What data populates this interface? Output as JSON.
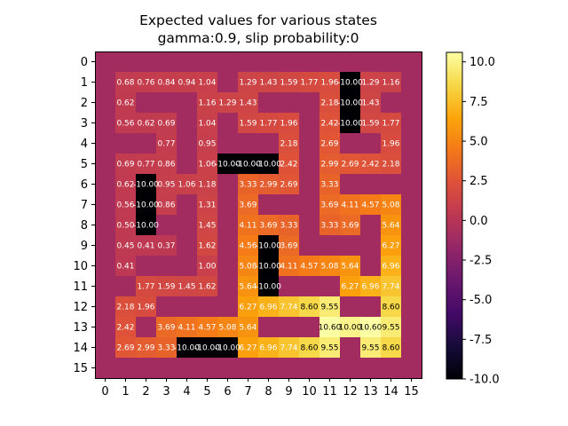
{
  "chart_data": {
    "type": "heatmap",
    "title": [
      "Expected values for various states",
      "gamma:0.9, slip probability:0"
    ],
    "xlabel": "",
    "ylabel": "",
    "x_ticks": [
      "0",
      "1",
      "2",
      "3",
      "4",
      "5",
      "6",
      "7",
      "8",
      "9",
      "10",
      "11",
      "12",
      "13",
      "14",
      "15"
    ],
    "y_ticks": [
      "0",
      "1",
      "2",
      "3",
      "4",
      "5",
      "6",
      "7",
      "8",
      "9",
      "10",
      "11",
      "12",
      "13",
      "14",
      "15"
    ],
    "colormap": "inferno",
    "vmin": -10.0,
    "vmax": 10.6,
    "colorbar_ticks": [
      "-10.0",
      "-7.5",
      "-5.0",
      "-2.5",
      "0.0",
      "2.5",
      "5.0",
      "7.5",
      "10.0"
    ],
    "colorbar_tick_values": [
      -10,
      -7.5,
      -5,
      -2.5,
      0,
      2.5,
      5,
      7.5,
      10
    ],
    "wall_value": -1,
    "grid": [
      [
        null,
        null,
        null,
        null,
        null,
        null,
        null,
        null,
        null,
        null,
        null,
        null,
        null,
        null,
        null,
        null
      ],
      [
        null,
        0.68,
        0.76,
        0.84,
        0.94,
        1.04,
        null,
        1.29,
        1.43,
        1.59,
        1.77,
        1.96,
        -10.0,
        1.29,
        1.16,
        null
      ],
      [
        null,
        0.62,
        null,
        null,
        null,
        1.16,
        1.29,
        1.43,
        null,
        null,
        null,
        2.18,
        -10.0,
        1.43,
        null,
        null
      ],
      [
        null,
        0.56,
        0.62,
        0.69,
        null,
        1.04,
        null,
        1.59,
        1.77,
        1.96,
        null,
        2.42,
        -10.0,
        1.59,
        1.77,
        null
      ],
      [
        null,
        null,
        null,
        0.77,
        null,
        0.95,
        null,
        null,
        null,
        2.18,
        null,
        2.69,
        null,
        null,
        1.96,
        null
      ],
      [
        null,
        0.69,
        0.77,
        0.86,
        null,
        1.06,
        -10.0,
        -10.0,
        -10.0,
        2.42,
        null,
        2.99,
        2.69,
        2.42,
        2.18,
        null
      ],
      [
        null,
        0.62,
        -10.0,
        0.95,
        1.06,
        1.18,
        null,
        3.33,
        2.99,
        2.69,
        null,
        3.33,
        null,
        null,
        null,
        null
      ],
      [
        null,
        0.56,
        -10.0,
        0.86,
        null,
        1.31,
        null,
        3.69,
        null,
        null,
        null,
        3.69,
        4.11,
        4.57,
        5.08,
        null
      ],
      [
        null,
        0.5,
        -10.0,
        null,
        null,
        1.45,
        null,
        4.11,
        3.69,
        3.33,
        null,
        3.33,
        3.69,
        null,
        5.64,
        null
      ],
      [
        null,
        0.45,
        0.41,
        0.37,
        null,
        1.62,
        null,
        4.56,
        -10.0,
        3.69,
        null,
        null,
        null,
        null,
        6.27,
        null
      ],
      [
        null,
        0.41,
        null,
        null,
        null,
        1.0,
        null,
        5.08,
        -10.0,
        4.11,
        4.57,
        5.08,
        5.64,
        null,
        6.96,
        null
      ],
      [
        null,
        null,
        1.77,
        1.59,
        1.45,
        1.62,
        null,
        5.64,
        -10.0,
        null,
        null,
        null,
        6.27,
        6.96,
        7.74,
        null
      ],
      [
        null,
        2.18,
        1.96,
        null,
        null,
        null,
        null,
        6.27,
        6.96,
        7.74,
        8.6,
        9.55,
        null,
        null,
        8.6,
        null
      ],
      [
        null,
        2.42,
        null,
        3.69,
        4.11,
        4.57,
        5.08,
        5.64,
        null,
        null,
        null,
        10.6,
        10.0,
        10.6,
        9.55,
        null
      ],
      [
        null,
        2.69,
        2.99,
        3.33,
        -10.0,
        -10.0,
        -10.0,
        6.27,
        6.96,
        7.74,
        8.6,
        9.55,
        null,
        9.55,
        8.6,
        null
      ],
      [
        null,
        null,
        null,
        null,
        null,
        null,
        null,
        null,
        null,
        null,
        null,
        null,
        null,
        null,
        null,
        null
      ]
    ],
    "cell_labels": [
      [
        null,
        null,
        null,
        null,
        null,
        null,
        null,
        null,
        null,
        null,
        null,
        null,
        null,
        null,
        null,
        null
      ],
      [
        null,
        "0.68",
        "0.76",
        "0.84",
        "0.94",
        "1.04",
        null,
        "1.29",
        "1.43",
        "1.59",
        "1.77",
        "1.96",
        "-10.00",
        "1.29",
        "1.16",
        null
      ],
      [
        null,
        "0.62",
        null,
        null,
        null,
        "1.16",
        "1.29",
        "1.43",
        null,
        null,
        null,
        "2.18",
        "-10.00",
        "1.43",
        null,
        null
      ],
      [
        null,
        "0.56",
        "0.62",
        "0.69",
        null,
        "1.04",
        null,
        "1.59",
        "1.77",
        "1.96",
        null,
        "2.42",
        "-10.00",
        "1.59",
        "1.77",
        null
      ],
      [
        null,
        null,
        null,
        "0.77",
        null,
        "0.95",
        null,
        null,
        null,
        "2.18",
        null,
        "2.69",
        null,
        null,
        "1.96",
        null
      ],
      [
        null,
        "0.69",
        "0.77",
        "0.86",
        null,
        "1.06",
        "-10.00",
        "-10.00",
        "-10.00",
        "2.42",
        null,
        "2.99",
        "2.69",
        "2.42",
        "2.18",
        null
      ],
      [
        null,
        "0.62",
        "-10.00",
        "0.95",
        "1.06",
        "1.18",
        null,
        "3.33",
        "2.99",
        "2.69",
        null,
        "3.33",
        null,
        null,
        null,
        null
      ],
      [
        null,
        "0.56",
        "-10.00",
        "0.86",
        null,
        "1.31",
        null,
        "3.69",
        null,
        null,
        null,
        "3.69",
        "4.11",
        "4.57",
        "5.08",
        null
      ],
      [
        null,
        "0.50",
        "-10.00",
        null,
        null,
        "1.45",
        null,
        "4.11",
        "3.69",
        "3.33",
        null,
        "3.33",
        "3.69",
        null,
        "5.64",
        null
      ],
      [
        null,
        "0.45",
        "0.41",
        "0.37",
        null,
        "1.62",
        null,
        "4.56",
        "-10.00",
        "3.69",
        null,
        null,
        null,
        null,
        "6.27",
        null
      ],
      [
        null,
        "0.41",
        null,
        null,
        null,
        "1.00",
        null,
        "5.08",
        "-10.00",
        "4.11",
        "4.57",
        "5.08",
        "5.64",
        null,
        "6.96",
        null
      ],
      [
        null,
        null,
        "1.77",
        "1.59",
        "1.45",
        "1.62",
        null,
        "5.64",
        "-10.00",
        null,
        null,
        null,
        "6.27",
        "6.96",
        "7.74",
        null
      ],
      [
        null,
        "2.18",
        "1.96",
        null,
        null,
        null,
        null,
        "6.27",
        "6.96",
        "7.74",
        "8.60",
        "9.55",
        null,
        null,
        "8.60",
        null
      ],
      [
        null,
        "2.42",
        null,
        "3.69",
        "4.11",
        "4.57",
        "5.08",
        "5.64",
        null,
        null,
        null,
        "10.60",
        "10.00",
        "10.60",
        "9.55",
        null
      ],
      [
        null,
        "2.69",
        "2.99",
        "3.33",
        "-10.00",
        "-10.00",
        "-10.00",
        "6.27",
        "6.96",
        "7.74",
        "8.60",
        "9.55",
        null,
        "9.55",
        "8.60",
        null
      ],
      [
        null,
        null,
        null,
        null,
        null,
        null,
        null,
        null,
        null,
        null,
        null,
        null,
        null,
        null,
        null,
        null
      ]
    ]
  }
}
